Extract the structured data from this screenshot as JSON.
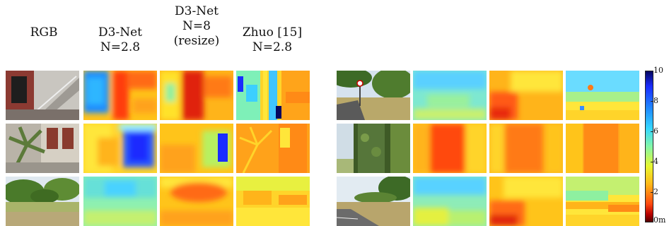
{
  "headers": [
    {
      "lines": [
        "RGB"
      ]
    },
    {
      "lines": [
        "D3-Net",
        "N=2.8"
      ]
    },
    {
      "lines": [
        "D3-Net",
        "N=8",
        "(resize)"
      ]
    },
    {
      "lines": [
        "Zhuo [15]",
        "N=2.8"
      ]
    }
  ],
  "colorbar": {
    "ticks": [
      "10",
      "8",
      "6",
      "4",
      "2",
      "0m"
    ],
    "max": 10,
    "min": 0,
    "unit": "m"
  }
}
